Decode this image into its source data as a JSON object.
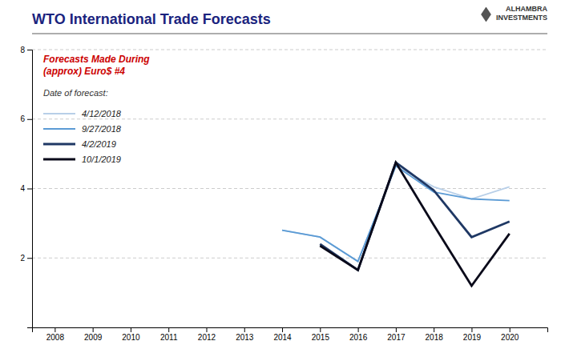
{
  "chart_data": {
    "type": "line",
    "title": "WTO International Trade Forecasts",
    "annotations": [
      "Forecasts Made During\n(approx) Euro$ #4",
      "Date of forecast:",
      "ALHAMBRA\nINVESTMENTS"
    ],
    "x": [
      2014,
      2015,
      2016,
      2017,
      2018,
      2019,
      2020
    ],
    "series": [
      {
        "name": "4/12/2018",
        "color": "#b8cfe8",
        "values": [
          2.8,
          2.6,
          1.9,
          4.65,
          4.05,
          3.7,
          4.05
        ]
      },
      {
        "name": "9/27/2018",
        "color": "#5b9bd5",
        "values": [
          2.8,
          2.6,
          1.9,
          4.65,
          3.9,
          3.7,
          3.65
        ]
      },
      {
        "name": "4/2/2019",
        "color": "#1f3864",
        "values": [
          null,
          2.4,
          1.65,
          4.75,
          3.95,
          2.6,
          3.05
        ]
      },
      {
        "name": "10/1/2019",
        "color": "#0a0a1a",
        "values": [
          null,
          2.35,
          1.65,
          4.75,
          2.95,
          1.2,
          2.7
        ]
      }
    ],
    "xlim": [
      2007.4,
      2021.0
    ],
    "xticks": [
      2008,
      2009,
      2010,
      2011,
      2012,
      2013,
      2014,
      2015,
      2016,
      2017,
      2018,
      2019,
      2020
    ],
    "ylim": [
      0,
      8
    ],
    "yticks": [
      2,
      4,
      6,
      8
    ],
    "grid": true,
    "legend": "top-left"
  }
}
